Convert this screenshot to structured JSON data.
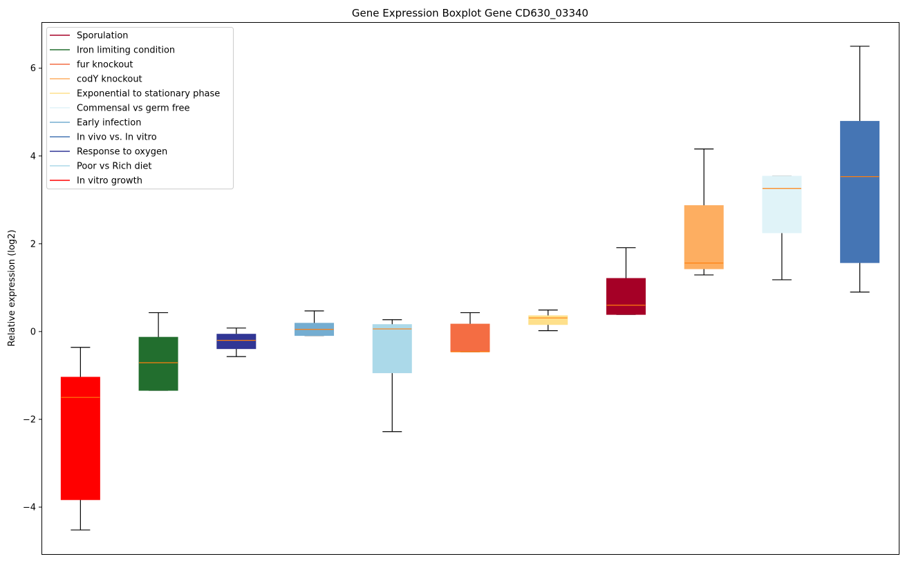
{
  "chart_data": {
    "type": "boxplot",
    "title": "Gene Expression Boxplot Gene CD630_03340",
    "xlabel": "",
    "ylabel": "Relative expression (log2)",
    "ylim": [
      -5.07,
      7.05
    ],
    "yticks": [
      -4,
      -2,
      0,
      2,
      4,
      6
    ],
    "ytick_labels": [
      "−4",
      "−2",
      "0",
      "2",
      "4",
      "6"
    ],
    "grid": false,
    "legend_position": "top-left",
    "median_color": "#ff7f0e",
    "legend": [
      {
        "label": "Sporulation",
        "color": "#a50026"
      },
      {
        "label": "Iron limiting condition",
        "color": "#226e2e"
      },
      {
        "label": "fur knockout",
        "color": "#f46d43"
      },
      {
        "label": "codY knockout",
        "color": "#fdae61"
      },
      {
        "label": "Exponential to stationary phase",
        "color": "#fee08b"
      },
      {
        "label": "Commensal vs germ free",
        "color": "#e0f3f8"
      },
      {
        "label": "Early infection",
        "color": "#74add1"
      },
      {
        "label": "In vivo vs. In vitro",
        "color": "#4575b4"
      },
      {
        "label": "Response to oxygen",
        "color": "#313695"
      },
      {
        "label": "Poor vs Rich diet",
        "color": "#abd9e9"
      },
      {
        "label": "In vitro growth",
        "color": "#ff0000"
      }
    ],
    "boxes": [
      {
        "name": "In vitro growth",
        "color": "#ff0000",
        "whisker_low": -4.52,
        "q1": -3.83,
        "median": -1.5,
        "q3": -1.04,
        "whisker_high": -0.36
      },
      {
        "name": "Iron limiting condition",
        "color": "#226e2e",
        "whisker_low": -1.34,
        "q1": -1.34,
        "median": -0.71,
        "q3": -0.13,
        "whisker_high": 0.43
      },
      {
        "name": "Response to oxygen",
        "color": "#313695",
        "whisker_low": -0.57,
        "q1": -0.39,
        "median": -0.2,
        "q3": -0.06,
        "whisker_high": 0.08
      },
      {
        "name": "Early infection",
        "color": "#74add1",
        "whisker_low": -0.09,
        "q1": -0.09,
        "median": 0.05,
        "q3": 0.19,
        "whisker_high": 0.47
      },
      {
        "name": "Poor vs Rich diet",
        "color": "#abd9e9",
        "whisker_low": -2.28,
        "q1": -0.94,
        "median": 0.06,
        "q3": 0.16,
        "whisker_high": 0.27
      },
      {
        "name": "fur knockout",
        "color": "#f46d43",
        "whisker_low": -0.46,
        "q1": -0.46,
        "median": -0.46,
        "q3": 0.17,
        "whisker_high": 0.43
      },
      {
        "name": "Exponential to stationary phase",
        "color": "#fee08b",
        "whisker_low": 0.02,
        "q1": 0.16,
        "median": 0.31,
        "q3": 0.36,
        "whisker_high": 0.49
      },
      {
        "name": "Sporulation",
        "color": "#a50026",
        "whisker_low": 0.39,
        "q1": 0.39,
        "median": 0.6,
        "q3": 1.21,
        "whisker_high": 1.91
      },
      {
        "name": "codY knockout",
        "color": "#fdae61",
        "whisker_low": 1.29,
        "q1": 1.43,
        "median": 1.56,
        "q3": 2.87,
        "whisker_high": 4.16
      },
      {
        "name": "Commensal vs germ free",
        "color": "#e0f3f8",
        "whisker_low": 1.18,
        "q1": 2.25,
        "median": 3.26,
        "q3": 3.54,
        "whisker_high": 3.54
      },
      {
        "name": "In vivo vs. In vitro",
        "color": "#4575b4",
        "whisker_low": 0.9,
        "q1": 1.57,
        "median": 3.53,
        "q3": 4.79,
        "whisker_high": 6.5
      }
    ]
  }
}
